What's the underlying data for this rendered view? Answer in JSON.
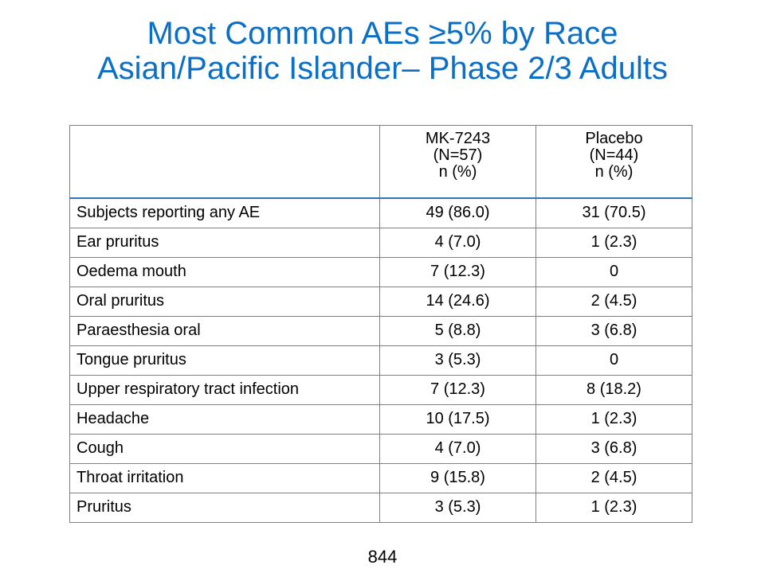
{
  "title": {
    "line1": "Most Common AEs ≥5% by Race",
    "line2": "Asian/Pacific Islander– Phase 2/3 Adults"
  },
  "table": {
    "headers": [
      {
        "lines": [
          "",
          "",
          ""
        ]
      },
      {
        "lines": [
          "MK-7243",
          "(N=57)",
          "n (%)"
        ]
      },
      {
        "lines": [
          "Placebo",
          "(N=44)",
          "n (%)"
        ]
      }
    ],
    "rows": [
      {
        "label": "Subjects reporting any AE",
        "mk": "49 (86.0)",
        "placebo": "31 (70.5)"
      },
      {
        "label": "Ear pruritus",
        "mk": "4 (7.0)",
        "placebo": "1 (2.3)"
      },
      {
        "label": "Oedema mouth",
        "mk": "7 (12.3)",
        "placebo": "0"
      },
      {
        "label": "Oral pruritus",
        "mk": "14 (24.6)",
        "placebo": "2 (4.5)"
      },
      {
        "label": "Paraesthesia oral",
        "mk": "5 (8.8)",
        "placebo": "3 (6.8)"
      },
      {
        "label": "Tongue pruritus",
        "mk": "3 (5.3)",
        "placebo": "0"
      },
      {
        "label": "Upper respiratory tract infection",
        "mk": "7 (12.3)",
        "placebo": "8 (18.2)"
      },
      {
        "label": "Headache",
        "mk": "10 (17.5)",
        "placebo": "1 (2.3)"
      },
      {
        "label": "Cough",
        "mk": "4 (7.0)",
        "placebo": "3 (6.8)"
      },
      {
        "label": "Throat irritation",
        "mk": "9 (15.8)",
        "placebo": "2 (4.5)"
      },
      {
        "label": "Pruritus",
        "mk": "3 (5.3)",
        "placebo": "1 (2.3)"
      }
    ]
  },
  "page_number": "844",
  "colors": {
    "title": "#0b6fc6",
    "header_rule": "#2e75b6",
    "grid": "#7f7f7f"
  }
}
